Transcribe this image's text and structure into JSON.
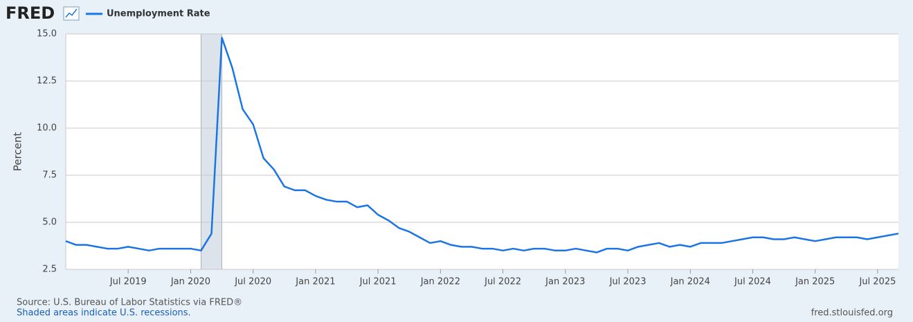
{
  "logo": "FRED",
  "chart_data": {
    "type": "line",
    "x": [
      "2019-01",
      "2019-02",
      "2019-03",
      "2019-04",
      "2019-05",
      "2019-06",
      "2019-07",
      "2019-08",
      "2019-09",
      "2019-10",
      "2019-11",
      "2019-12",
      "2020-01",
      "2020-02",
      "2020-03",
      "2020-04",
      "2020-05",
      "2020-06",
      "2020-07",
      "2020-08",
      "2020-09",
      "2020-10",
      "2020-11",
      "2020-12",
      "2021-01",
      "2021-02",
      "2021-03",
      "2021-04",
      "2021-05",
      "2021-06",
      "2021-07",
      "2021-08",
      "2021-09",
      "2021-10",
      "2021-11",
      "2021-12",
      "2022-01",
      "2022-02",
      "2022-03",
      "2022-04",
      "2022-05",
      "2022-06",
      "2022-07",
      "2022-08",
      "2022-09",
      "2022-10",
      "2022-11",
      "2022-12",
      "2023-01",
      "2023-02",
      "2023-03",
      "2023-04",
      "2023-05",
      "2023-06",
      "2023-07",
      "2023-08",
      "2023-09",
      "2023-10",
      "2023-11",
      "2023-12",
      "2024-01",
      "2024-02",
      "2024-03",
      "2024-04",
      "2024-05",
      "2024-06",
      "2024-07",
      "2024-08",
      "2024-09",
      "2024-10",
      "2024-11",
      "2024-12",
      "2025-01",
      "2025-02",
      "2025-03",
      "2025-04",
      "2025-05",
      "2025-06",
      "2025-07",
      "2025-08",
      "2025-09"
    ],
    "series": [
      {
        "name": "Unemployment Rate",
        "color": "#1b74e4",
        "values": [
          4.0,
          3.8,
          3.8,
          3.7,
          3.6,
          3.6,
          3.7,
          3.6,
          3.5,
          3.6,
          3.6,
          3.6,
          3.6,
          3.5,
          4.4,
          14.8,
          13.2,
          11.0,
          10.2,
          8.4,
          7.8,
          6.9,
          6.7,
          6.7,
          6.4,
          6.2,
          6.1,
          6.1,
          5.8,
          5.9,
          5.4,
          5.1,
          4.7,
          4.5,
          4.2,
          3.9,
          4.0,
          3.8,
          3.7,
          3.7,
          3.6,
          3.6,
          3.5,
          3.6,
          3.5,
          3.6,
          3.6,
          3.5,
          3.5,
          3.6,
          3.5,
          3.4,
          3.6,
          3.6,
          3.5,
          3.7,
          3.8,
          3.9,
          3.7,
          3.8,
          3.7,
          3.9,
          3.9,
          3.9,
          4.0,
          4.1,
          4.2,
          4.2,
          4.1,
          4.1,
          4.2,
          4.1,
          4.0,
          4.1,
          4.2,
          4.2,
          4.2,
          4.1,
          4.2,
          4.3,
          4.4
        ]
      }
    ],
    "xlim": [
      "2019-01",
      "2025-09"
    ],
    "xticks": [
      {
        "value": "2019-07",
        "label": "Jul 2019"
      },
      {
        "value": "2020-01",
        "label": "Jan 2020"
      },
      {
        "value": "2020-07",
        "label": "Jul 2020"
      },
      {
        "value": "2021-01",
        "label": "Jan 2021"
      },
      {
        "value": "2021-07",
        "label": "Jul 2021"
      },
      {
        "value": "2022-01",
        "label": "Jan 2022"
      },
      {
        "value": "2022-07",
        "label": "Jul 2022"
      },
      {
        "value": "2023-01",
        "label": "Jan 2023"
      },
      {
        "value": "2023-07",
        "label": "Jul 2023"
      },
      {
        "value": "2024-01",
        "label": "Jan 2024"
      },
      {
        "value": "2024-07",
        "label": "Jul 2024"
      },
      {
        "value": "2025-01",
        "label": "Jan 2025"
      },
      {
        "value": "2025-07",
        "label": "Jul 2025"
      }
    ],
    "ylabel": "Percent",
    "ylim": [
      2.5,
      15
    ],
    "yticks": [
      {
        "value": 2.5,
        "label": "2.5"
      },
      {
        "value": 5,
        "label": "5.0"
      },
      7.5,
      {
        "value": 10,
        "label": "10.0"
      },
      12.5,
      {
        "value": 15,
        "label": "15.0"
      }
    ],
    "grid": true,
    "recessions": [
      {
        "start": "2020-02",
        "end": "2020-04"
      }
    ],
    "source": "Source: U.S. Bureau of Labor Statistics via FRED®",
    "note": "Shaded areas indicate U.S. recessions.",
    "credit": "fred.stlouisfed.org"
  }
}
